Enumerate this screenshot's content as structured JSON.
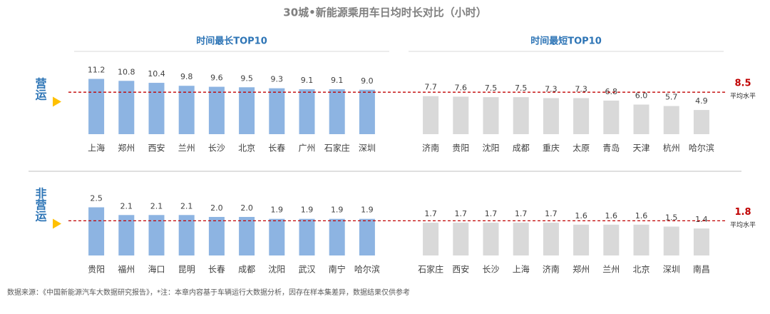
{
  "title": "30城•新能源乘用车日均时长对比（小时）",
  "columns": [
    "时间最长TOP10",
    "时间最短TOP10"
  ],
  "rows": [
    {
      "label": "营运",
      "average": 8.5,
      "average_label": "平均水平"
    },
    {
      "label": "非营运",
      "average": 1.8,
      "average_label": "平均水平"
    }
  ],
  "chart_data": [
    {
      "type": "bar",
      "categories": [
        "上海",
        "郑州",
        "西安",
        "兰州",
        "长沙",
        "北京",
        "长春",
        "广州",
        "石家庄",
        "深圳"
      ],
      "values": [
        11.2,
        10.8,
        10.4,
        9.8,
        9.6,
        9.5,
        9.3,
        9.1,
        9.1,
        9.0
      ],
      "value_labels": [
        "11.2",
        "10.8",
        "10.4",
        "9.8",
        "9.6",
        "9.5",
        "9.3",
        "9.1",
        "9.1",
        "9.0"
      ],
      "color": "#8db4e2",
      "ylim": [
        0,
        12
      ]
    },
    {
      "type": "bar",
      "categories": [
        "济南",
        "贵阳",
        "沈阳",
        "成都",
        "重庆",
        "太原",
        "青岛",
        "天津",
        "杭州",
        "哈尔滨"
      ],
      "values": [
        7.7,
        7.6,
        7.5,
        7.5,
        7.3,
        7.3,
        6.8,
        6.0,
        5.7,
        4.9
      ],
      "value_labels": [
        "7.7",
        "7.6",
        "7.5",
        "7.5",
        "7.3",
        "7.3",
        "6.8",
        "6.0",
        "5.7",
        "4.9"
      ],
      "color": "#d9d9d9",
      "ylim": [
        0,
        12
      ]
    },
    {
      "type": "bar",
      "categories": [
        "贵阳",
        "福州",
        "海口",
        "昆明",
        "长春",
        "成都",
        "沈阳",
        "武汉",
        "南宁",
        "哈尔滨"
      ],
      "values": [
        2.5,
        2.1,
        2.1,
        2.1,
        2.0,
        2.0,
        1.9,
        1.9,
        1.9,
        1.9
      ],
      "value_labels": [
        "2.5",
        "2.1",
        "2.1",
        "2.1",
        "2.0",
        "2.0",
        "1.9",
        "1.9",
        "1.9",
        "1.9"
      ],
      "color": "#8db4e2",
      "ylim": [
        0,
        3
      ]
    },
    {
      "type": "bar",
      "categories": [
        "石家庄",
        "西安",
        "长沙",
        "上海",
        "济南",
        "郑州",
        "兰州",
        "北京",
        "深圳",
        "南昌"
      ],
      "values": [
        1.7,
        1.7,
        1.7,
        1.7,
        1.7,
        1.6,
        1.6,
        1.6,
        1.5,
        1.4
      ],
      "value_labels": [
        "1.7",
        "1.7",
        "1.7",
        "1.7",
        "1.7",
        "1.6",
        "1.6",
        "1.6",
        "1.5",
        "1.4"
      ],
      "color": "#d9d9d9",
      "ylim": [
        0,
        3
      ]
    }
  ],
  "source": "数据来源：《中国新能源汽车大数据研究报告》，*注：本章内容基于车辆运行大数据分析，因存在样本集差异，数据结果仅供参考"
}
